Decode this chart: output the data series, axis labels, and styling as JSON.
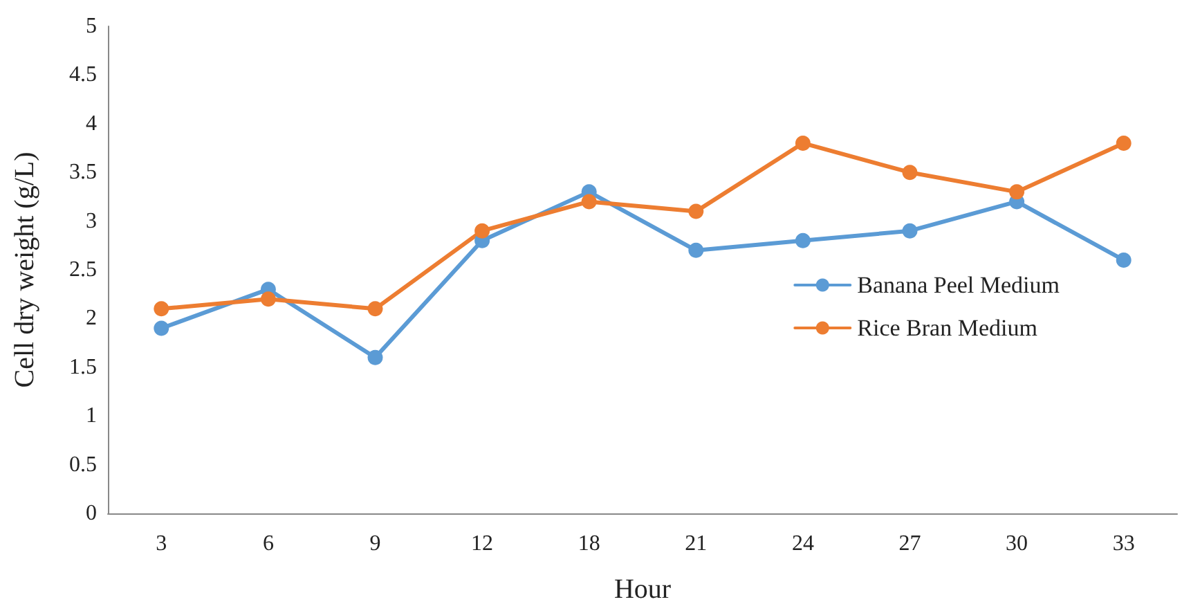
{
  "chart_data": {
    "type": "line",
    "xlabel": "Hour",
    "ylabel": "Cell dry weight (g/L)",
    "categories": [
      "3",
      "6",
      "9",
      "12",
      "18",
      "21",
      "24",
      "27",
      "30",
      "33"
    ],
    "series": [
      {
        "name": "Banana Peel Medium",
        "color": "#5b9bd5",
        "values": [
          1.9,
          2.3,
          1.6,
          2.8,
          3.3,
          2.7,
          2.8,
          2.9,
          3.2,
          2.6
        ]
      },
      {
        "name": "Rice Bran Medium",
        "color": "#ed7d31",
        "values": [
          2.1,
          2.2,
          2.1,
          2.9,
          3.2,
          3.1,
          3.8,
          3.5,
          3.3,
          3.8
        ]
      }
    ],
    "ylim": [
      0,
      5
    ],
    "yticks": [
      0,
      0.5,
      1,
      1.5,
      2,
      2.5,
      3,
      3.5,
      4,
      4.5,
      5
    ],
    "grid": false,
    "legend": "right",
    "marker": "circle",
    "line_style": "solid"
  }
}
